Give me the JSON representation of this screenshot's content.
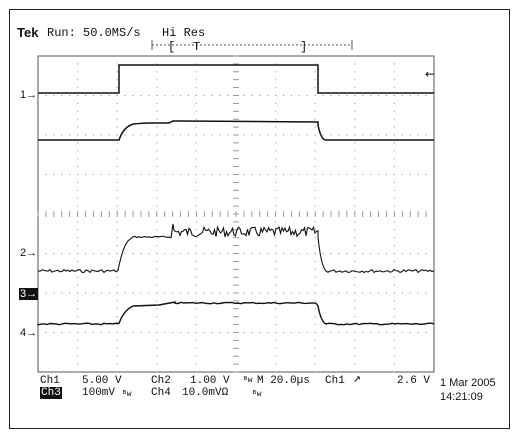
{
  "header": {
    "brand": "Tek",
    "run_status": "Run: 50.0MS/s",
    "acq_mode": "Hi Res"
  },
  "timebar": {
    "left_bracket": "[",
    "trigger_marker": "T",
    "right_bracket": "]"
  },
  "channel_markers": [
    "1→",
    "2→",
    "3→",
    "4→"
  ],
  "trigger_level_marker": "←",
  "readout": {
    "row1": {
      "ch1": "Ch1",
      "ch1_scale": "5.00 V",
      "ch2": "Ch2",
      "ch2_scale": "1.00 V",
      "bw1": "ᴮᴡ",
      "timebase": "M 20.0µs",
      "trig_src": "Ch1",
      "trig_slope": "↗",
      "trig_level": "2.6 V"
    },
    "row2": {
      "ch3": "Ch3",
      "ch3_scale": "100mV",
      "bw3": "ᴮᴡ",
      "ch4": "Ch4",
      "ch4_scale": "10.0mVΩ",
      "bw4": "ᴮᴡ"
    }
  },
  "datetime": {
    "date": "1 Mar 2005",
    "time": "14:21:09"
  },
  "colors": {
    "trace": "#111111",
    "grid": "#888888",
    "background": "#ffffff"
  }
}
